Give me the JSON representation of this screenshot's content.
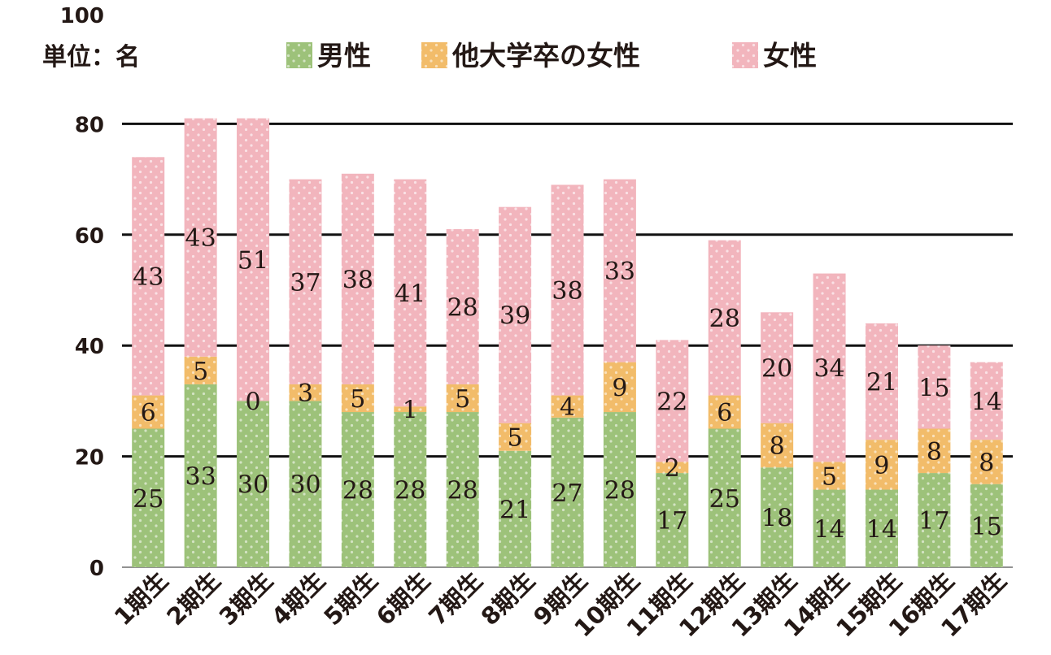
{
  "chart_data": {
    "type": "bar",
    "stacked": true,
    "unit_label": "単位：名",
    "categories": [
      "1期生",
      "2期生",
      "3期生",
      "4期生",
      "5期生",
      "6期生",
      "7期生",
      "8期生",
      "9期生",
      "10期生",
      "11期生",
      "12期生",
      "13期生",
      "14期生",
      "15期生",
      "16期生",
      "17期生"
    ],
    "series": [
      {
        "name": "男性",
        "color": "#9dc27a",
        "values": [
          25,
          33,
          30,
          30,
          28,
          28,
          28,
          21,
          27,
          28,
          17,
          25,
          18,
          14,
          14,
          17,
          15
        ]
      },
      {
        "name": "他大学卒の女性",
        "color": "#f2bc6a",
        "values": [
          6,
          5,
          0,
          3,
          5,
          1,
          5,
          5,
          4,
          9,
          2,
          6,
          8,
          5,
          9,
          8,
          8
        ]
      },
      {
        "name": "女性",
        "color": "#f2b5bd",
        "values": [
          43,
          43,
          51,
          37,
          38,
          41,
          28,
          39,
          38,
          33,
          22,
          28,
          20,
          34,
          21,
          15,
          14
        ]
      }
    ],
    "ylim": [
      0,
      100
    ],
    "yticks": [
      "0",
      "20",
      "40",
      "60",
      "80",
      "100"
    ],
    "grid": true,
    "legend_position": "top"
  }
}
